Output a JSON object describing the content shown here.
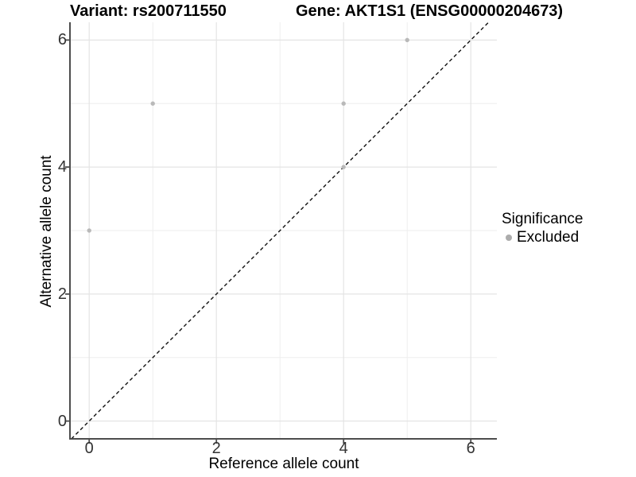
{
  "header": {
    "left_title": "Variant: rs200711550",
    "right_title": "Gene: AKT1S1 (ENSG00000204673)"
  },
  "chart_data": {
    "type": "scatter",
    "title": "Variant: rs200711550   Gene: AKT1S1 (ENSG00000204673)",
    "xlabel": "Reference allele count",
    "ylabel": "Alternative allele count",
    "xlim": [
      -0.29,
      6.41
    ],
    "ylim": [
      -0.28,
      6.28
    ],
    "x_ticks": [
      0,
      2,
      4,
      6
    ],
    "y_ticks": [
      0,
      2,
      4,
      6
    ],
    "x_minor_ticks": [
      1,
      3,
      5
    ],
    "y_minor_ticks": [
      1,
      3,
      5
    ],
    "grid": true,
    "series": [
      {
        "name": "Excluded",
        "color": "#b9b9b9",
        "points": [
          {
            "x": 0,
            "y": 3
          },
          {
            "x": 1,
            "y": 5
          },
          {
            "x": 4,
            "y": 4
          },
          {
            "x": 4,
            "y": 5
          },
          {
            "x": 5,
            "y": 6
          }
        ]
      }
    ],
    "identity_line": {
      "slope": 1,
      "intercept": 0,
      "style": "dashed",
      "color": "#111111"
    },
    "legend": {
      "title": "Significance",
      "position": "right",
      "items": [
        {
          "label": "Excluded",
          "color": "#acacac"
        }
      ]
    },
    "colors": {
      "background": "#ffffff",
      "grid_major": "#e4e4e4",
      "grid_minor": "#eeeeee",
      "axis_line": "#4d4d4d",
      "tick_text": "#333333",
      "point": "#b9b9b9",
      "dashed_line": "#111111"
    }
  }
}
